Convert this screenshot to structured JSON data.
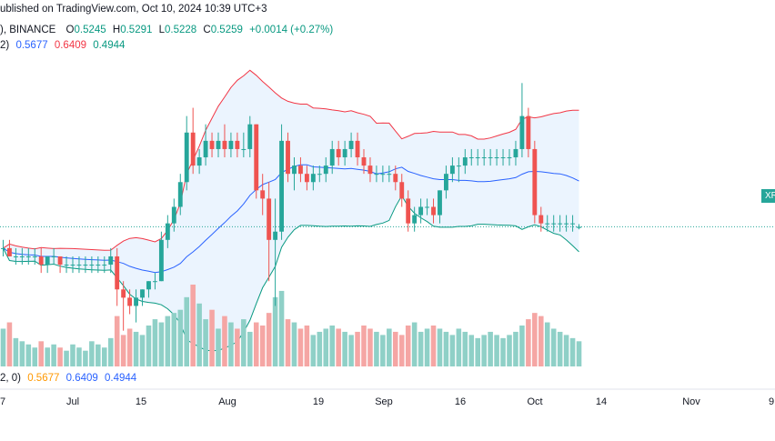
{
  "publish_line": "ublished on TradingView.com, Oct 10, 2024 10:39 UTC+3",
  "ohlc": {
    "prefix": "), BINANCE",
    "o_label": "O",
    "o": "0.5245",
    "h_label": "H",
    "h": "0.5291",
    "l_label": "L",
    "l": "0.5228",
    "c_label": "C",
    "c": "0.5259",
    "change": "+0.0014 (+0.27%)"
  },
  "bb_top": {
    "prefix": "2)",
    "basis": "0.5677",
    "upper": "0.6409",
    "lower": "0.4944"
  },
  "bb_bottom": {
    "prefix": "2, 0)",
    "basis": "0.5677",
    "upper": "0.6409",
    "lower": "0.4944"
  },
  "price_tag": "XR",
  "x_ticks": [
    "7",
    "Jul",
    "15",
    "Aug",
    "19",
    "Sep",
    "16",
    "Oct",
    "14",
    "Nov",
    "9"
  ],
  "colors": {
    "up": "#26a69a",
    "down": "#ef5350",
    "upper_band": "#f23645",
    "basis": "#2962ff",
    "lower_band": "#089981",
    "band_fill": "#e3effd",
    "vol_up": "#8fd0c7",
    "vol_down": "#f5a6a4"
  },
  "chart_data": {
    "type": "candlestick",
    "symbol_exchange": "BINANCE",
    "y_visible_range": [
      0.36,
      0.74
    ],
    "last_close": 0.5259,
    "candles": [
      [
        0.5,
        0.51,
        0.49,
        0.5
      ],
      [
        0.5,
        0.51,
        0.49,
        0.49
      ],
      [
        0.49,
        0.5,
        0.48,
        0.49
      ],
      [
        0.49,
        0.5,
        0.48,
        0.49
      ],
      [
        0.49,
        0.5,
        0.48,
        0.49
      ],
      [
        0.49,
        0.5,
        0.48,
        0.49
      ],
      [
        0.49,
        0.5,
        0.47,
        0.48
      ],
      [
        0.48,
        0.49,
        0.47,
        0.49
      ],
      [
        0.49,
        0.5,
        0.48,
        0.49
      ],
      [
        0.49,
        0.49,
        0.47,
        0.48
      ],
      [
        0.48,
        0.49,
        0.47,
        0.48
      ],
      [
        0.48,
        0.49,
        0.47,
        0.48
      ],
      [
        0.48,
        0.49,
        0.47,
        0.48
      ],
      [
        0.48,
        0.49,
        0.47,
        0.48
      ],
      [
        0.48,
        0.49,
        0.47,
        0.48
      ],
      [
        0.48,
        0.49,
        0.47,
        0.48
      ],
      [
        0.48,
        0.49,
        0.47,
        0.48
      ],
      [
        0.48,
        0.5,
        0.47,
        0.49
      ],
      [
        0.49,
        0.5,
        0.43,
        0.45
      ],
      [
        0.45,
        0.46,
        0.4,
        0.44
      ],
      [
        0.44,
        0.45,
        0.42,
        0.43
      ],
      [
        0.43,
        0.45,
        0.41,
        0.44
      ],
      [
        0.44,
        0.45,
        0.43,
        0.45
      ],
      [
        0.45,
        0.46,
        0.44,
        0.46
      ],
      [
        0.46,
        0.47,
        0.45,
        0.46
      ],
      [
        0.46,
        0.52,
        0.46,
        0.51
      ],
      [
        0.51,
        0.54,
        0.5,
        0.53
      ],
      [
        0.53,
        0.56,
        0.52,
        0.55
      ],
      [
        0.55,
        0.59,
        0.54,
        0.58
      ],
      [
        0.58,
        0.66,
        0.57,
        0.64
      ],
      [
        0.64,
        0.67,
        0.59,
        0.6
      ],
      [
        0.6,
        0.62,
        0.59,
        0.61
      ],
      [
        0.61,
        0.65,
        0.6,
        0.63
      ],
      [
        0.63,
        0.64,
        0.61,
        0.62
      ],
      [
        0.62,
        0.64,
        0.61,
        0.63
      ],
      [
        0.63,
        0.65,
        0.61,
        0.62
      ],
      [
        0.62,
        0.64,
        0.61,
        0.63
      ],
      [
        0.63,
        0.64,
        0.61,
        0.62
      ],
      [
        0.62,
        0.64,
        0.61,
        0.62
      ],
      [
        0.62,
        0.66,
        0.61,
        0.65
      ],
      [
        0.65,
        0.65,
        0.56,
        0.57
      ],
      [
        0.57,
        0.59,
        0.54,
        0.56
      ],
      [
        0.56,
        0.58,
        0.46,
        0.51
      ],
      [
        0.51,
        0.56,
        0.43,
        0.52
      ],
      [
        0.52,
        0.65,
        0.51,
        0.63
      ],
      [
        0.63,
        0.64,
        0.58,
        0.59
      ],
      [
        0.59,
        0.61,
        0.57,
        0.6
      ],
      [
        0.6,
        0.61,
        0.58,
        0.59
      ],
      [
        0.59,
        0.6,
        0.57,
        0.58
      ],
      [
        0.58,
        0.6,
        0.57,
        0.59
      ],
      [
        0.59,
        0.6,
        0.58,
        0.59
      ],
      [
        0.59,
        0.61,
        0.58,
        0.6
      ],
      [
        0.6,
        0.63,
        0.59,
        0.62
      ],
      [
        0.62,
        0.63,
        0.6,
        0.61
      ],
      [
        0.61,
        0.63,
        0.6,
        0.62
      ],
      [
        0.62,
        0.64,
        0.61,
        0.63
      ],
      [
        0.63,
        0.64,
        0.6,
        0.61
      ],
      [
        0.61,
        0.62,
        0.59,
        0.6
      ],
      [
        0.6,
        0.61,
        0.58,
        0.59
      ],
      [
        0.59,
        0.6,
        0.58,
        0.59
      ],
      [
        0.59,
        0.6,
        0.58,
        0.59
      ],
      [
        0.59,
        0.6,
        0.58,
        0.59
      ],
      [
        0.59,
        0.6,
        0.57,
        0.58
      ],
      [
        0.58,
        0.59,
        0.55,
        0.56
      ],
      [
        0.56,
        0.57,
        0.52,
        0.53
      ],
      [
        0.53,
        0.55,
        0.52,
        0.54
      ],
      [
        0.54,
        0.56,
        0.53,
        0.55
      ],
      [
        0.55,
        0.56,
        0.54,
        0.55
      ],
      [
        0.55,
        0.56,
        0.53,
        0.54
      ],
      [
        0.54,
        0.57,
        0.53,
        0.57
      ],
      [
        0.57,
        0.6,
        0.56,
        0.59
      ],
      [
        0.59,
        0.61,
        0.58,
        0.6
      ],
      [
        0.6,
        0.61,
        0.58,
        0.6
      ],
      [
        0.6,
        0.62,
        0.59,
        0.61
      ],
      [
        0.61,
        0.62,
        0.6,
        0.61
      ],
      [
        0.61,
        0.62,
        0.6,
        0.61
      ],
      [
        0.61,
        0.62,
        0.6,
        0.61
      ],
      [
        0.61,
        0.62,
        0.6,
        0.61
      ],
      [
        0.61,
        0.62,
        0.6,
        0.61
      ],
      [
        0.61,
        0.62,
        0.6,
        0.61
      ],
      [
        0.61,
        0.62,
        0.6,
        0.61
      ],
      [
        0.61,
        0.63,
        0.6,
        0.62
      ],
      [
        0.62,
        0.7,
        0.61,
        0.66
      ],
      [
        0.66,
        0.67,
        0.61,
        0.62
      ],
      [
        0.62,
        0.63,
        0.53,
        0.54
      ],
      [
        0.54,
        0.55,
        0.52,
        0.53
      ],
      [
        0.53,
        0.54,
        0.52,
        0.53
      ],
      [
        0.53,
        0.54,
        0.52,
        0.53
      ],
      [
        0.53,
        0.54,
        0.52,
        0.53
      ],
      [
        0.53,
        0.54,
        0.52,
        0.53
      ],
      [
        0.53,
        0.54,
        0.52,
        0.53
      ],
      [
        0.5245,
        0.5291,
        0.5228,
        0.5259
      ]
    ],
    "volume": [
      12,
      14,
      9,
      8,
      7,
      6,
      8,
      6,
      7,
      6,
      5,
      7,
      6,
      5,
      8,
      7,
      6,
      9,
      16,
      10,
      12,
      11,
      10,
      13,
      15,
      14,
      16,
      17,
      18,
      22,
      26,
      20,
      15,
      18,
      12,
      16,
      14,
      12,
      15,
      11,
      14,
      13,
      17,
      22,
      24,
      15,
      14,
      12,
      13,
      10,
      11,
      12,
      13,
      12,
      11,
      10,
      11,
      13,
      12,
      11,
      10,
      12,
      11,
      10,
      13,
      14,
      11,
      12,
      13,
      12,
      11,
      10,
      12,
      11,
      10,
      9,
      10,
      11,
      10,
      9,
      10,
      11,
      13,
      15,
      17,
      16,
      14,
      12,
      11,
      10,
      9,
      8
    ]
  }
}
